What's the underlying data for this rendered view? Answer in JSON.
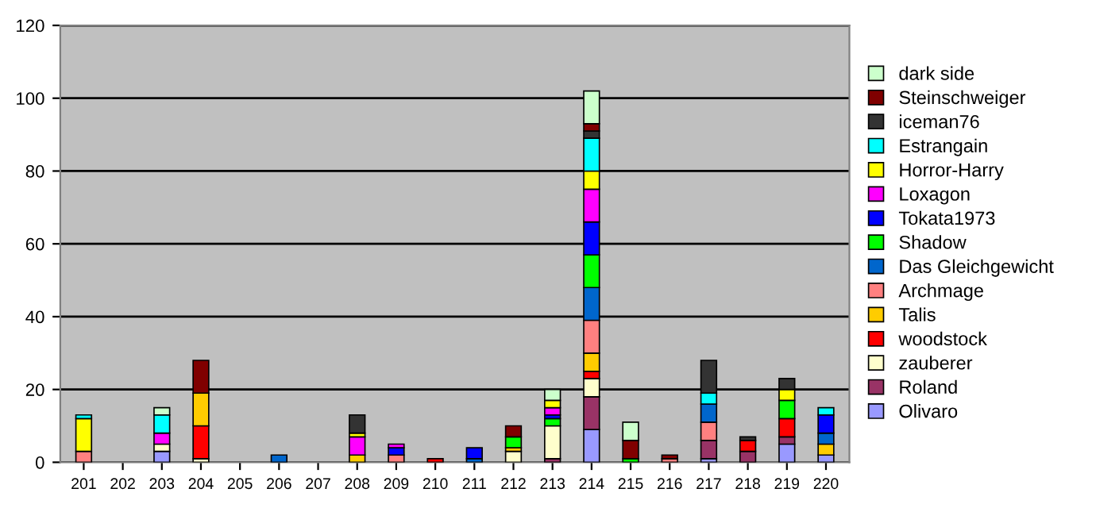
{
  "chart_data": {
    "type": "bar",
    "stacked": true,
    "categories": [
      "201",
      "202",
      "203",
      "204",
      "205",
      "206",
      "207",
      "208",
      "209",
      "210",
      "211",
      "212",
      "213",
      "214",
      "215",
      "216",
      "217",
      "218",
      "219",
      "220"
    ],
    "series": [
      {
        "name": "Olivaro",
        "color": "#9999ff",
        "values": [
          null,
          null,
          3,
          null,
          null,
          null,
          null,
          null,
          null,
          null,
          null,
          null,
          null,
          9,
          null,
          null,
          1,
          null,
          5,
          2
        ]
      },
      {
        "name": "Roland",
        "color": "#993366",
        "values": [
          null,
          null,
          null,
          null,
          null,
          null,
          null,
          null,
          null,
          null,
          null,
          null,
          1,
          9,
          null,
          null,
          5,
          3,
          2,
          null
        ]
      },
      {
        "name": "zauberer",
        "color": "#ffffcc",
        "values": [
          null,
          null,
          2,
          1,
          null,
          null,
          null,
          null,
          null,
          null,
          null,
          3,
          9,
          5,
          null,
          null,
          null,
          null,
          null,
          null
        ]
      },
      {
        "name": "woodstock",
        "color": "#ff0000",
        "values": [
          null,
          null,
          null,
          9,
          null,
          null,
          null,
          null,
          null,
          1,
          null,
          null,
          null,
          2,
          null,
          null,
          null,
          3,
          5,
          null
        ]
      },
      {
        "name": "Talis",
        "color": "#ffcc00",
        "values": [
          null,
          null,
          null,
          9,
          null,
          null,
          null,
          2,
          null,
          null,
          null,
          1,
          null,
          5,
          null,
          null,
          null,
          null,
          null,
          3
        ]
      },
      {
        "name": "Archmage",
        "color": "#ff8080",
        "values": [
          3,
          null,
          null,
          null,
          null,
          null,
          null,
          null,
          2,
          null,
          null,
          null,
          null,
          9,
          null,
          1,
          5,
          null,
          null,
          null
        ]
      },
      {
        "name": "Das Gleichgewicht",
        "color": "#0066cc",
        "values": [
          null,
          null,
          null,
          null,
          null,
          2,
          null,
          null,
          null,
          null,
          1,
          null,
          null,
          9,
          null,
          null,
          5,
          null,
          null,
          3
        ]
      },
      {
        "name": "Shadow",
        "color": "#00ff00",
        "values": [
          null,
          null,
          null,
          null,
          null,
          null,
          null,
          null,
          null,
          null,
          null,
          3,
          2,
          9,
          1,
          null,
          null,
          null,
          5,
          null
        ]
      },
      {
        "name": "Tokata1973",
        "color": "#0000ff",
        "values": [
          null,
          null,
          null,
          null,
          null,
          null,
          null,
          null,
          2,
          null,
          3,
          null,
          1,
          9,
          null,
          null,
          null,
          null,
          null,
          5
        ]
      },
      {
        "name": "Loxagon",
        "color": "#ff00ff",
        "values": [
          null,
          null,
          3,
          null,
          null,
          null,
          null,
          5,
          1,
          null,
          null,
          null,
          2,
          9,
          null,
          null,
          null,
          null,
          null,
          null
        ]
      },
      {
        "name": "Horror-Harry",
        "color": "#ffff00",
        "values": [
          9,
          null,
          null,
          null,
          null,
          null,
          null,
          1,
          null,
          null,
          null,
          null,
          2,
          5,
          null,
          null,
          null,
          null,
          3,
          null
        ]
      },
      {
        "name": "Estrangain",
        "color": "#00ffff",
        "values": [
          1,
          null,
          5,
          null,
          null,
          null,
          null,
          null,
          null,
          null,
          null,
          null,
          null,
          9,
          null,
          null,
          3,
          null,
          null,
          2
        ]
      },
      {
        "name": "iceman76",
        "color": "#333333",
        "values": [
          null,
          null,
          null,
          null,
          null,
          null,
          null,
          5,
          null,
          null,
          null,
          null,
          null,
          2,
          null,
          null,
          9,
          1,
          3,
          null
        ]
      },
      {
        "name": "Steinschweiger",
        "color": "#800000",
        "values": [
          null,
          null,
          null,
          9,
          null,
          null,
          null,
          null,
          null,
          null,
          null,
          3,
          null,
          2,
          5,
          1,
          null,
          null,
          null,
          null
        ]
      },
      {
        "name": "dark side",
        "color": "#ccffcc",
        "values": [
          null,
          null,
          2,
          null,
          null,
          null,
          null,
          null,
          null,
          null,
          null,
          null,
          3,
          9,
          5,
          null,
          null,
          null,
          null,
          null
        ]
      }
    ],
    "ylim": [
      0,
      120
    ],
    "yticks": [
      0,
      20,
      40,
      60,
      80,
      100,
      120
    ],
    "grid": "y",
    "legend": "right"
  }
}
